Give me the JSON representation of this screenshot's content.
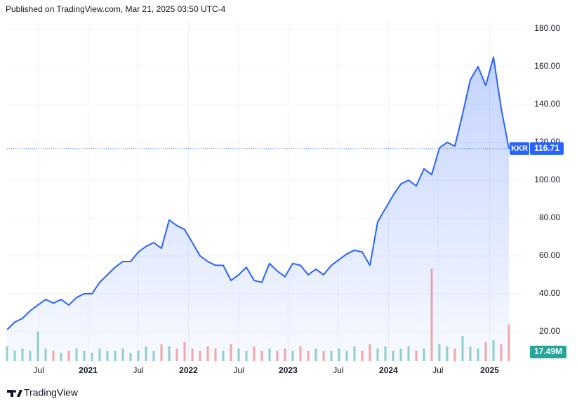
{
  "header": "Published on TradingView.com, Mar 21, 2025 03:50 UTC-4",
  "footer": "TradingView",
  "chart_data": {
    "type": "area",
    "symbol": "KKR",
    "color": "#2962ff",
    "values": [
      21,
      25,
      27,
      31,
      34,
      37,
      35,
      37,
      34,
      38,
      40,
      40,
      46,
      50,
      54,
      57,
      57,
      62,
      65,
      67,
      64,
      79,
      76,
      74,
      67,
      60,
      57,
      55,
      55,
      47,
      50,
      54,
      47,
      46,
      56,
      52,
      49,
      56,
      55,
      50,
      53,
      50,
      55,
      58,
      61,
      63,
      62,
      55,
      78,
      85,
      92,
      98,
      100,
      97,
      106,
      103,
      117,
      120,
      118,
      135,
      153,
      160,
      150,
      165,
      138,
      116.71
    ],
    "xlim": [
      0,
      65
    ],
    "xticks": [
      {
        "value": 4.1,
        "label": "Jul"
      },
      {
        "value": 10.5,
        "label": "2021"
      },
      {
        "value": 17,
        "label": "Jul"
      },
      {
        "value": 23.5,
        "label": "2022"
      },
      {
        "value": 30,
        "label": "Jul"
      },
      {
        "value": 36.4,
        "label": "2023"
      },
      {
        "value": 42.9,
        "label": "Jul"
      },
      {
        "value": 49.4,
        "label": "2024"
      },
      {
        "value": 55.8,
        "label": "Jul"
      },
      {
        "value": 62.5,
        "label": "2025"
      }
    ],
    "ylim": [
      4.4,
      184.1
    ],
    "yticks": [
      {
        "value": 20,
        "label": "20.00"
      },
      {
        "value": 40,
        "label": "40.00"
      },
      {
        "value": 60,
        "label": "60.00"
      },
      {
        "value": 80,
        "label": "80.00"
      },
      {
        "value": 100,
        "label": "100.00"
      },
      {
        "value": 120,
        "label": "120.00"
      },
      {
        "value": 140,
        "label": "140.00"
      },
      {
        "value": 160,
        "label": "160.00"
      },
      {
        "value": 180,
        "label": "180.00"
      }
    ],
    "grid": true,
    "volume": {
      "up_color": "#26a69a",
      "down_color": "#ef5350",
      "values": [
        7,
        5,
        6,
        5,
        14,
        6,
        5,
        4,
        5,
        6,
        5,
        4,
        6,
        5,
        5,
        6,
        4,
        5,
        7,
        5,
        8,
        7,
        6,
        9,
        6,
        5,
        7,
        6,
        5,
        8,
        6,
        5,
        7,
        5,
        6,
        5,
        6,
        5,
        7,
        5,
        6,
        5,
        5,
        6,
        5,
        7,
        5,
        8,
        6,
        7,
        5,
        6,
        7,
        5,
        6,
        44,
        8,
        7,
        6,
        12,
        7,
        6,
        9,
        10,
        8,
        17.49
      ],
      "value_labels": [
        null,
        null,
        null,
        null,
        null,
        null,
        null,
        null,
        null,
        null,
        null,
        null,
        null,
        null,
        null,
        null,
        null,
        null,
        null,
        null,
        null,
        null,
        null,
        null,
        null,
        null,
        null,
        null,
        null,
        null,
        null,
        null,
        null,
        null,
        null,
        null,
        null,
        null,
        null,
        null,
        null,
        null,
        null,
        null,
        null,
        null,
        null,
        null,
        null,
        null,
        null,
        null,
        null,
        null,
        null,
        null,
        null,
        null,
        null,
        null,
        null,
        null,
        null,
        null,
        null,
        "17.49M"
      ]
    }
  }
}
